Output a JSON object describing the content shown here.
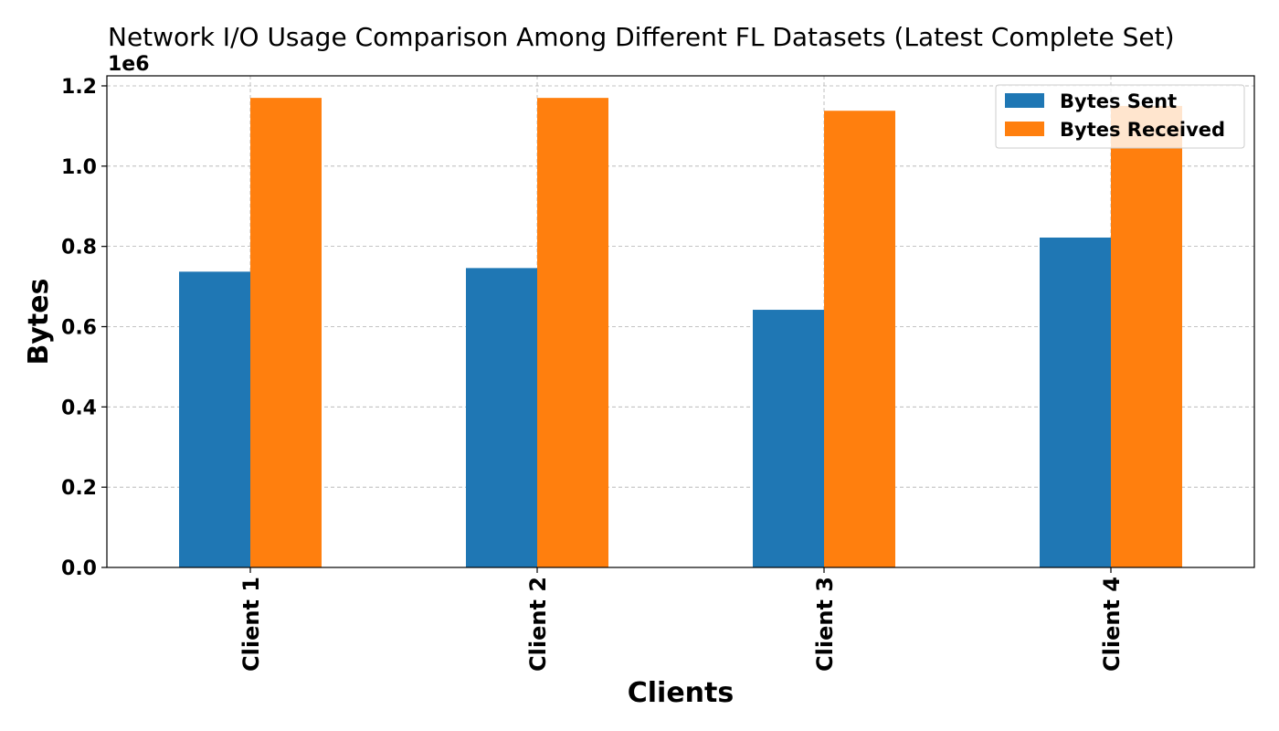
{
  "chart_data": {
    "type": "bar",
    "title": "Network I/O Usage Comparison Among Different FL Datasets (Latest Complete Set)",
    "xlabel": "Clients",
    "ylabel": "Bytes",
    "offset_text": "1e6",
    "categories": [
      "Client 1",
      "Client 2",
      "Client 3",
      "Client 4"
    ],
    "series": [
      {
        "name": "Bytes Sent",
        "color": "#1f77b4",
        "values": [
          737000,
          746000,
          642000,
          822000
        ]
      },
      {
        "name": "Bytes Received",
        "color": "#ff7f0e",
        "values": [
          1170000,
          1170000,
          1138000,
          1150000
        ]
      }
    ],
    "ylim": [
      0,
      1225000
    ],
    "yticks": [
      0,
      200000,
      400000,
      600000,
      800000,
      1000000,
      1200000
    ],
    "ytick_labels": [
      "0.0",
      "0.2",
      "0.4",
      "0.6",
      "0.8",
      "1.0",
      "1.2"
    ],
    "grid": true,
    "legend_position": "top-right"
  }
}
